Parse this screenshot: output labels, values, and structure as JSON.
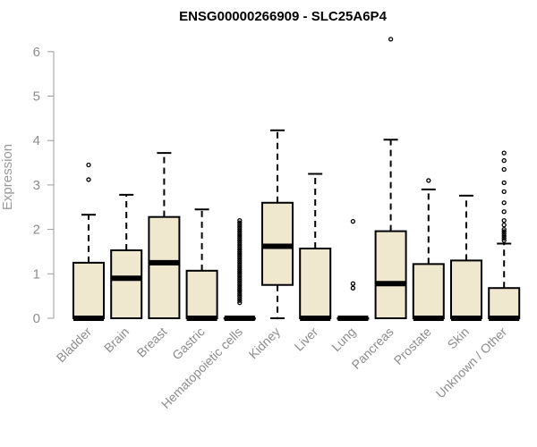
{
  "chart_data": {
    "type": "boxplot",
    "title": "ENSG00000266909 - SLC25A6P4",
    "ylabel": "Expression",
    "xlabel": "",
    "ylim": [
      0,
      6.2
    ],
    "yticks": [
      0,
      1,
      2,
      3,
      4,
      5,
      6
    ],
    "box_fill": "#efe8cf",
    "categories": [
      "Bladder",
      "Brain",
      "Breast",
      "Gastric",
      "Hematopoietic cells",
      "Kidney",
      "Liver",
      "Lung",
      "Pancreas",
      "Prostate",
      "Skin",
      "Unknown / Other"
    ],
    "boxes": [
      {
        "q1": 0,
        "median": 0,
        "q3": 1.25,
        "whisker_low": 0,
        "whisker_high": 2.33,
        "outliers": [
          3.12,
          3.45
        ]
      },
      {
        "q1": 0,
        "median": 0.9,
        "q3": 1.53,
        "whisker_low": 0,
        "whisker_high": 2.78,
        "outliers": []
      },
      {
        "q1": 0,
        "median": 1.25,
        "q3": 2.28,
        "whisker_low": 0,
        "whisker_high": 3.72,
        "outliers": []
      },
      {
        "q1": 0,
        "median": 0,
        "q3": 1.07,
        "whisker_low": 0,
        "whisker_high": 2.45,
        "outliers": []
      },
      {
        "q1": 0,
        "median": 0,
        "q3": 0,
        "whisker_low": 0,
        "whisker_high": 0,
        "outliers": [
          0.35,
          0.4,
          0.45,
          0.5,
          0.55,
          0.6,
          0.65,
          0.7,
          0.75,
          0.8,
          0.85,
          0.9,
          0.95,
          1.0,
          1.05,
          1.1,
          1.15,
          1.2,
          1.25,
          1.3,
          1.35,
          1.4,
          1.45,
          1.5,
          1.55,
          1.6,
          1.65,
          1.7,
          1.75,
          1.8,
          1.85,
          1.9,
          1.95,
          2.0,
          2.05,
          2.1,
          2.15,
          2.2
        ]
      },
      {
        "q1": 0.75,
        "median": 1.62,
        "q3": 2.6,
        "whisker_low": 0,
        "whisker_high": 4.23,
        "outliers": []
      },
      {
        "q1": 0,
        "median": 0,
        "q3": 1.57,
        "whisker_low": 0,
        "whisker_high": 3.25,
        "outliers": []
      },
      {
        "q1": 0,
        "median": 0,
        "q3": 0,
        "whisker_low": 0,
        "whisker_high": 0,
        "outliers": [
          0.68,
          0.78,
          2.18
        ]
      },
      {
        "q1": 0,
        "median": 0.78,
        "q3": 1.96,
        "whisker_low": 0,
        "whisker_high": 4.02,
        "outliers": [
          6.28
        ]
      },
      {
        "q1": 0,
        "median": 0,
        "q3": 1.22,
        "whisker_low": 0,
        "whisker_high": 2.9,
        "outliers": [
          3.1
        ]
      },
      {
        "q1": 0,
        "median": 0,
        "q3": 1.3,
        "whisker_low": 0,
        "whisker_high": 2.76,
        "outliers": []
      },
      {
        "q1": 0,
        "median": 0,
        "q3": 0.68,
        "whisker_low": 0,
        "whisker_high": 1.68,
        "outliers": [
          1.75,
          1.8,
          1.85,
          1.9,
          1.95,
          2.0,
          2.1,
          2.2,
          2.4,
          2.6,
          2.85,
          3.05,
          3.35,
          3.55,
          3.72
        ]
      }
    ]
  }
}
